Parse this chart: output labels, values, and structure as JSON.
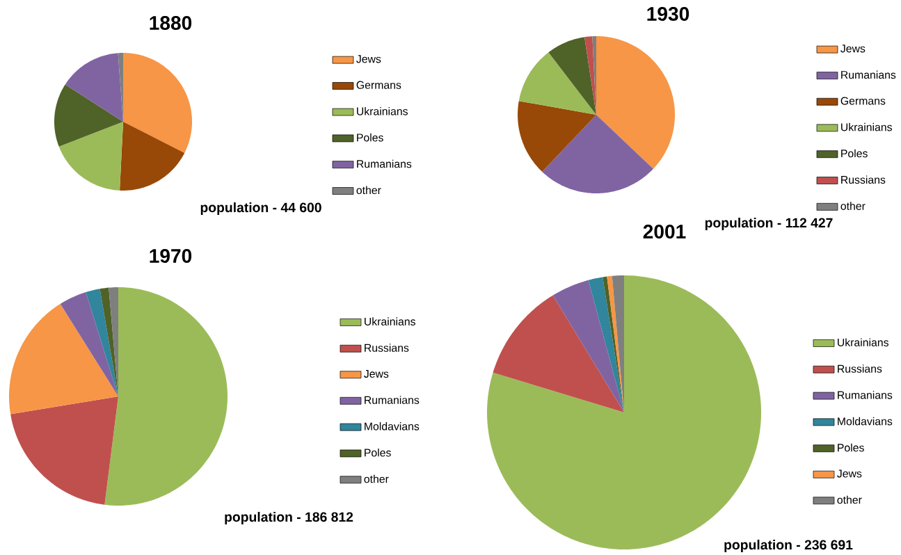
{
  "chart_data": [
    {
      "type": "pie",
      "title": "1880",
      "categories": [
        "Jews",
        "Germans",
        "Ukrainians",
        "Poles",
        "Rumanians",
        "other"
      ],
      "values": [
        32.5,
        18.3,
        18.3,
        15,
        14.7,
        1.2
      ],
      "colors": [
        "#f79646",
        "#984807",
        "#9bbb59",
        "#4f6228",
        "#8064a2",
        "#7f7f7f"
      ],
      "legend": "right",
      "annotations": [
        "population - 44 600"
      ]
    },
    {
      "type": "pie",
      "title": "1930",
      "categories": [
        "Jews",
        "Rumanians",
        "Germans",
        "Ukrainians",
        "Poles",
        "Russians",
        "other"
      ],
      "values": [
        37.1,
        25,
        15.7,
        11.8,
        8,
        1.6,
        0.8
      ],
      "colors": [
        "#f79646",
        "#8064a2",
        "#984807",
        "#9bbb59",
        "#4f6228",
        "#c0504d",
        "#7f7f7f"
      ],
      "legend": "right",
      "annotations": [
        "population - 112 427"
      ]
    },
    {
      "type": "pie",
      "title": "1970",
      "categories": [
        "Ukrainians",
        "Russians",
        "Jews",
        "Rumanians",
        "Moldavians",
        "Poles",
        "other"
      ],
      "values": [
        52,
        20.4,
        18.7,
        4.1,
        2.1,
        1.3,
        1.4
      ],
      "colors": [
        "#9bbb59",
        "#c0504d",
        "#f79646",
        "#8064a2",
        "#31859c",
        "#4f6228",
        "#7f7f7f"
      ],
      "legend": "right",
      "annotations": [
        "population - 186 812"
      ]
    },
    {
      "type": "pie",
      "title": "2001",
      "categories": [
        "Ukrainians",
        "Russians",
        "Rumanians",
        "Moldavians",
        "Poles",
        "Jews",
        "other"
      ],
      "values": [
        79.7,
        11.6,
        4.5,
        1.7,
        0.5,
        0.6,
        1.4
      ],
      "colors": [
        "#9bbb59",
        "#c0504d",
        "#8064a2",
        "#31859c",
        "#4f6228",
        "#f79646",
        "#7f7f7f"
      ],
      "legend": "right",
      "annotations": [
        "population - 236 691"
      ]
    }
  ]
}
